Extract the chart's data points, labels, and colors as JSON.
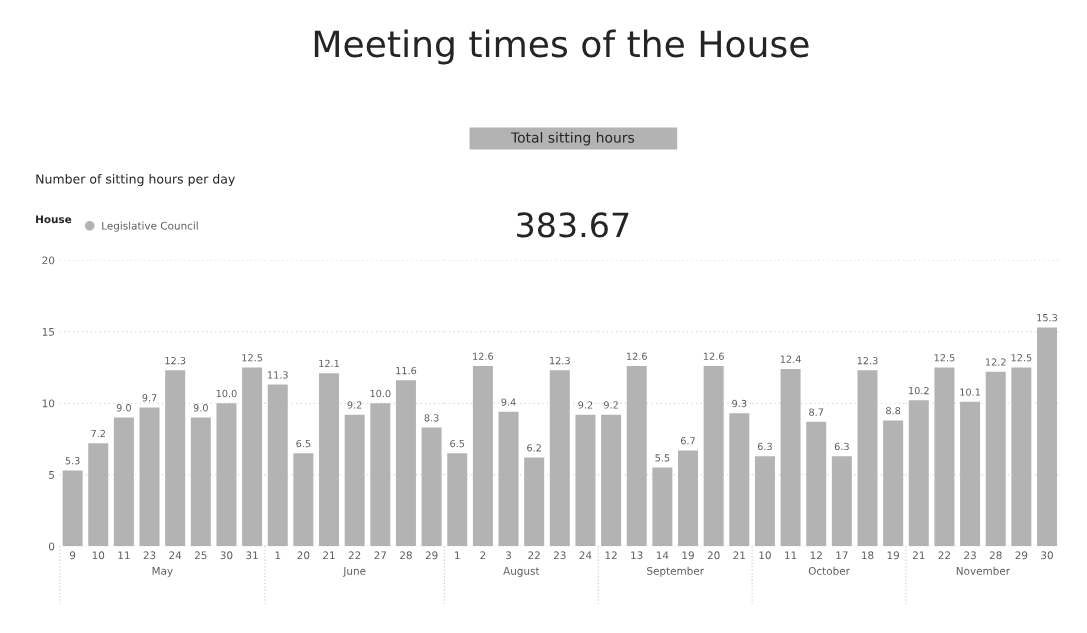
{
  "chart_data": [
    {
      "type": "other",
      "title": "Meeting times of the House",
      "annotations": [
        "Total sitting hours",
        "383.67"
      ]
    },
    {
      "type": "bar",
      "title": "Number of sitting hours per day",
      "legend_title": "House",
      "legend": "top left",
      "xlabel": "May",
      "categories": [
        "9",
        "10",
        "11",
        "23",
        "24",
        "25",
        "30",
        "31"
      ],
      "series": [
        {
          "name": "Legislative Council",
          "color": "#b3b3b3",
          "values": [
            5.3,
            7.2,
            9.0,
            9.7,
            12.3,
            9.0,
            10.0,
            12.5
          ],
          "value_labels": [
            "5.3",
            "7.2",
            "9.0",
            "9.7",
            "12.3",
            "9.0",
            "10.0",
            "12.5"
          ]
        }
      ],
      "ylim": [
        0,
        20
      ],
      "yticks": [
        0,
        5,
        10,
        15,
        20
      ],
      "grid": "y"
    },
    {
      "type": "bar",
      "xlabel": "June",
      "tick_labels": "x",
      "categories": [
        "1",
        "20",
        "21",
        "22",
        "27",
        "28",
        "29"
      ],
      "series": [
        {
          "color": "#b3b3b3",
          "values": [
            11.3,
            6.5,
            12.1,
            9.2,
            10.0,
            11.6,
            8.3
          ],
          "value_labels": [
            "11.3",
            "6.5",
            "12.1",
            "9.2",
            "10.0",
            "11.6",
            "8.3"
          ]
        }
      ],
      "ylim": [
        0,
        20
      ],
      "yticks": [
        0,
        5,
        10,
        15,
        20
      ],
      "grid": "y"
    },
    {
      "type": "bar",
      "xlabel": "August",
      "tick_labels": "x",
      "categories": [
        "1",
        "2",
        "3",
        "22",
        "23",
        "24"
      ],
      "series": [
        {
          "color": "#b3b3b3",
          "values": [
            6.5,
            12.6,
            9.4,
            6.2,
            12.3,
            9.2
          ],
          "value_labels": [
            "6.5",
            "12.6",
            "9.4",
            "6.2",
            "12.3",
            "9.2"
          ]
        }
      ],
      "ylim": [
        0,
        20
      ],
      "yticks": [
        0,
        5,
        10,
        15,
        20
      ],
      "grid": "y"
    },
    {
      "type": "bar",
      "xlabel": "September",
      "tick_labels": "x",
      "categories": [
        "12",
        "13",
        "14",
        "19",
        "20",
        "21"
      ],
      "series": [
        {
          "color": "#b3b3b3",
          "values": [
            9.2,
            12.6,
            5.5,
            6.7,
            12.6,
            9.3
          ],
          "value_labels": [
            "9.2",
            "12.6",
            "5.5",
            "6.7",
            "12.6",
            "9.3"
          ]
        }
      ],
      "ylim": [
        0,
        20
      ],
      "yticks": [
        0,
        5,
        10,
        15,
        20
      ],
      "grid": "y"
    },
    {
      "type": "bar",
      "xlabel": "October",
      "tick_labels": "x",
      "categories": [
        "10",
        "11",
        "12",
        "17",
        "18",
        "19"
      ],
      "series": [
        {
          "color": "#b3b3b3",
          "values": [
            6.3,
            12.4,
            8.7,
            6.3,
            12.3,
            8.8
          ],
          "value_labels": [
            "6.3",
            "12.4",
            "8.7",
            "6.3",
            "12.3",
            "8.8"
          ]
        }
      ],
      "ylim": [
        0,
        20
      ],
      "yticks": [
        0,
        5,
        10,
        15,
        20
      ],
      "grid": "y"
    },
    {
      "type": "bar",
      "xlabel": "November",
      "tick_labels": "x",
      "categories": [
        "21",
        "22",
        "23",
        "28",
        "29",
        "30"
      ],
      "series": [
        {
          "color": "#b3b3b3",
          "values": [
            10.2,
            12.5,
            10.1,
            12.2,
            12.5,
            15.3
          ],
          "value_labels": [
            "10.2",
            "12.5",
            "10.1",
            "12.2",
            "12.5",
            "15.3"
          ]
        }
      ],
      "ylim": [
        0,
        20
      ],
      "yticks": [
        0,
        5,
        10,
        15,
        20
      ],
      "grid": "y"
    }
  ]
}
